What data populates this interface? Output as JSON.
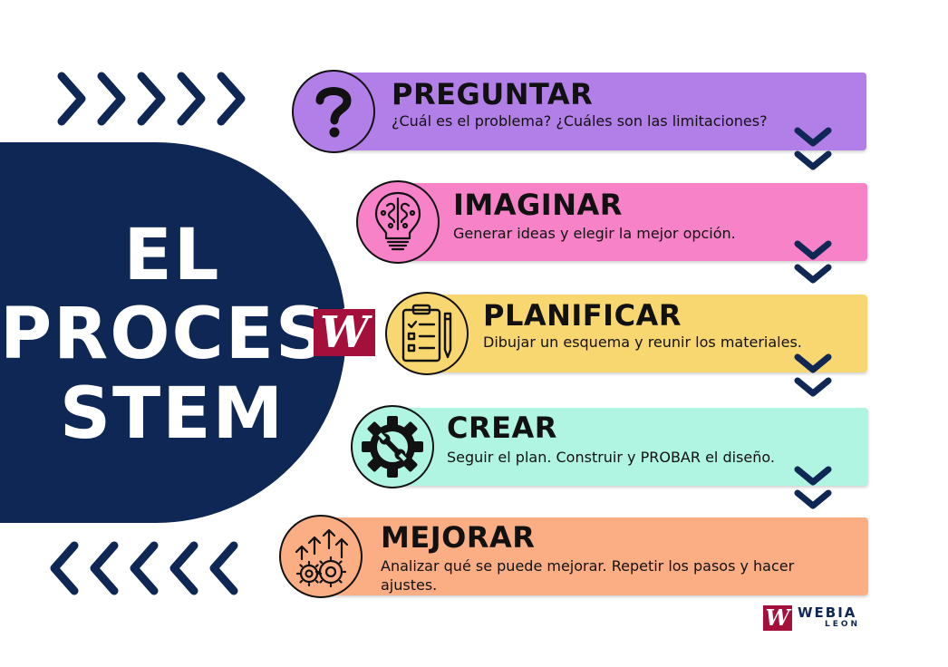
{
  "title": {
    "line1": "EL",
    "line2": "PROCESO",
    "line3": "STEM"
  },
  "center_logo": "W",
  "steps": [
    {
      "title": "PREGUNTAR",
      "description": "¿Cuál es el problema? ¿Cuáles son las limitaciones?",
      "icon": "question-mark-icon",
      "color": "#b27fe8"
    },
    {
      "title": "IMAGINAR",
      "description": "Generar ideas y elegir la mejor opción.",
      "icon": "brain-lightbulb-icon",
      "color": "#f782c8"
    },
    {
      "title": "PLANIFICAR",
      "description": "Dibujar un esquema y reunir los materiales.",
      "icon": "clipboard-checklist-icon",
      "color": "#f8d770"
    },
    {
      "title": "CREAR",
      "description": "Seguir el plan. Construir y PROBAR el diseño.",
      "icon": "gear-wrench-icon",
      "color": "#aff5e2"
    },
    {
      "title": "MEJORAR",
      "description": "Analizar qué se puede mejorar. Repetir los pasos y hacer ajustes.",
      "icon": "gears-arrows-icon",
      "color": "#fbae83"
    }
  ],
  "brand": {
    "mark": "W",
    "name": "WEBIA",
    "sub": "LEON"
  },
  "colors": {
    "navy": "#0f2755",
    "brand_red": "#a50f3b"
  }
}
